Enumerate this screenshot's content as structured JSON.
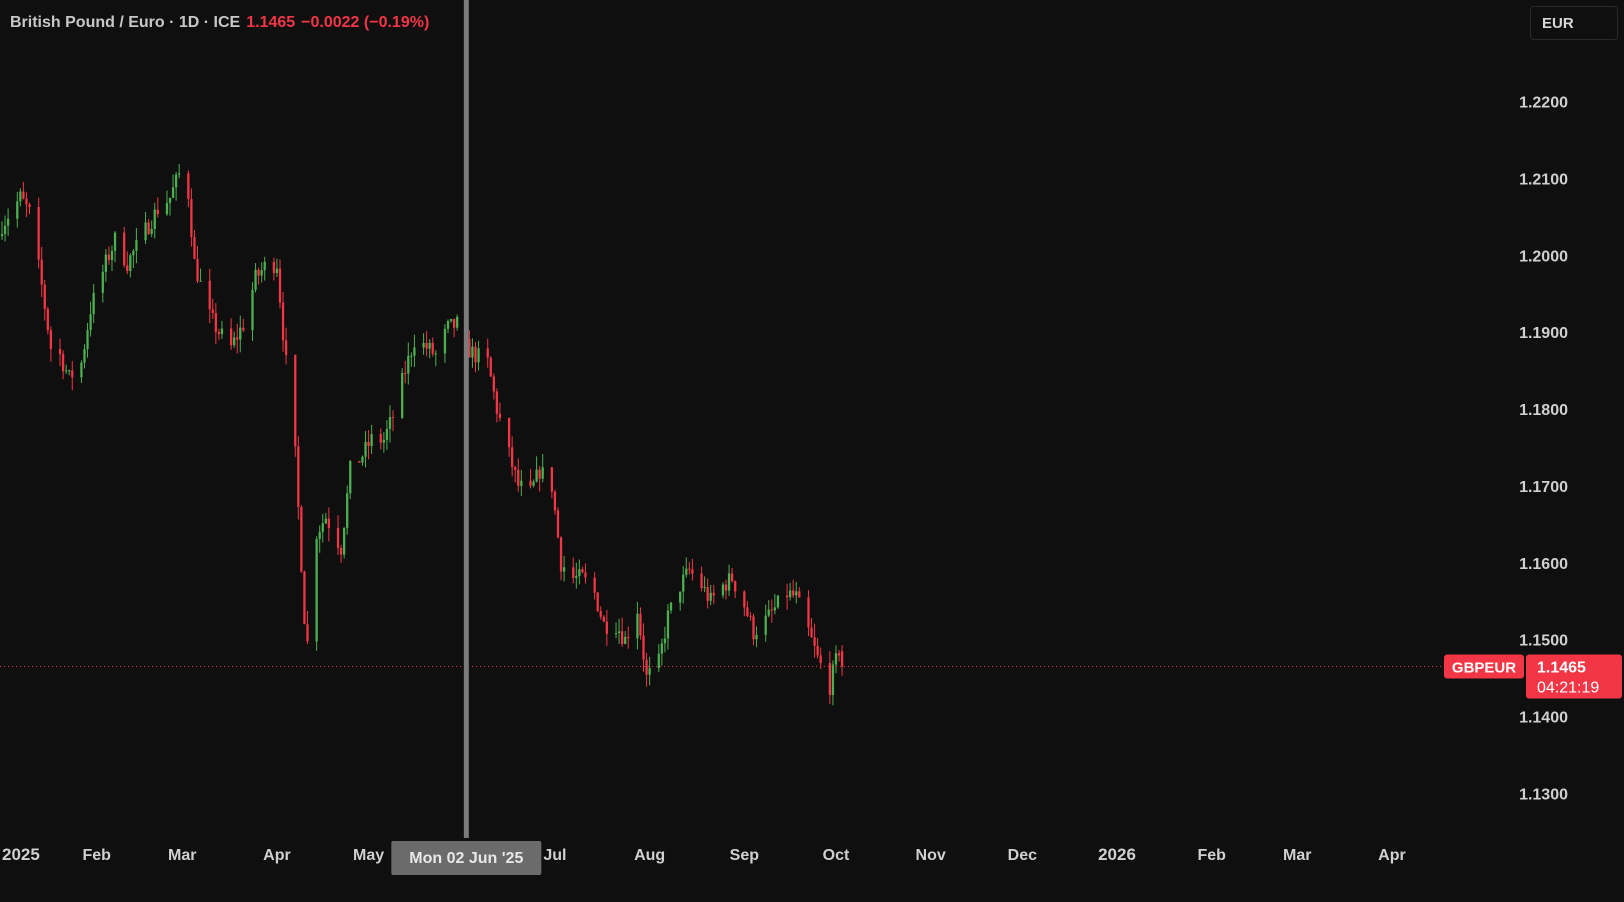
{
  "header": {
    "symbol_title": "British Pound / Euro · 1D · ICE",
    "last_price": "1.1465",
    "change": "−0.0022 (−0.19%)"
  },
  "currency_button": {
    "label": "EUR"
  },
  "price_tag": {
    "symbol": "GBPEUR",
    "price": "1.1465",
    "countdown": "04:21:19"
  },
  "crosshair": {
    "date_label": "Mon 02 Jun '25",
    "date": "2025-06-02"
  },
  "colors": {
    "background": "#0f0f0f",
    "up": "#4caf50",
    "down": "#f23645",
    "crosshair": "#7b7b7b",
    "axis_text": "#d0d0d0"
  },
  "chart_data": {
    "type": "candlestick",
    "symbol": "GBPEUR",
    "interval": "1D",
    "y_axis": {
      "ticks": [
        1.22,
        1.21,
        1.2,
        1.19,
        1.18,
        1.17,
        1.16,
        1.15,
        1.14,
        1.13
      ],
      "tick_labels": [
        "1.2200",
        "1.2100",
        "1.2000",
        "1.1900",
        "1.1800",
        "1.1700",
        "1.1600",
        "1.1500",
        "1.1400",
        "1.1300"
      ],
      "range": [
        1.1242,
        1.228
      ]
    },
    "x_axis": {
      "range": [
        "2025-01-01",
        "2026-04-20"
      ],
      "ticks": [
        {
          "label": "2025",
          "date": "2025-01-01",
          "major": true
        },
        {
          "label": "Feb",
          "date": "2025-02-01"
        },
        {
          "label": "Mar",
          "date": "2025-03-01"
        },
        {
          "label": "Apr",
          "date": "2025-04-01"
        },
        {
          "label": "May",
          "date": "2025-05-01"
        },
        {
          "label": "Jul",
          "date": "2025-07-01"
        },
        {
          "label": "Aug",
          "date": "2025-08-01"
        },
        {
          "label": "Sep",
          "date": "2025-09-01"
        },
        {
          "label": "Oct",
          "date": "2025-10-01"
        },
        {
          "label": "Nov",
          "date": "2025-11-01"
        },
        {
          "label": "Dec",
          "date": "2025-12-01"
        },
        {
          "label": "2026",
          "date": "2026-01-01",
          "major": true
        },
        {
          "label": "Feb",
          "date": "2026-02-01"
        },
        {
          "label": "Mar",
          "date": "2026-03-01"
        },
        {
          "label": "Apr",
          "date": "2026-04-01"
        }
      ]
    },
    "current_price_line": 1.1465,
    "series_close": [
      [
        "2025-01-01",
        1.204
      ],
      [
        "2025-01-07",
        1.2075
      ],
      [
        "2025-01-10",
        1.2055
      ],
      [
        "2025-01-14",
        1.196
      ],
      [
        "2025-01-17",
        1.188
      ],
      [
        "2025-01-20",
        1.187
      ],
      [
        "2025-01-23",
        1.184
      ],
      [
        "2025-01-27",
        1.186
      ],
      [
        "2025-01-30",
        1.193
      ],
      [
        "2025-02-04",
        1.199
      ],
      [
        "2025-02-07",
        1.202
      ],
      [
        "2025-02-11",
        1.199
      ],
      [
        "2025-02-14",
        1.201
      ],
      [
        "2025-02-18",
        1.204
      ],
      [
        "2025-02-21",
        1.206
      ],
      [
        "2025-02-25",
        1.2075
      ],
      [
        "2025-02-28",
        1.2105
      ],
      [
        "2025-03-03",
        1.208
      ],
      [
        "2025-03-05",
        1.199
      ],
      [
        "2025-03-10",
        1.192
      ],
      [
        "2025-03-13",
        1.19
      ],
      [
        "2025-03-17",
        1.188
      ],
      [
        "2025-03-21",
        1.191
      ],
      [
        "2025-03-25",
        1.197
      ],
      [
        "2025-03-28",
        1.1985
      ],
      [
        "2025-04-01",
        1.199
      ],
      [
        "2025-04-03",
        1.19
      ],
      [
        "2025-04-07",
        1.174
      ],
      [
        "2025-04-10",
        1.153
      ],
      [
        "2025-04-11",
        1.1495
      ],
      [
        "2025-04-14",
        1.164
      ],
      [
        "2025-04-17",
        1.166
      ],
      [
        "2025-04-22",
        1.162
      ],
      [
        "2025-04-25",
        1.172
      ],
      [
        "2025-04-29",
        1.174
      ],
      [
        "2025-05-02",
        1.176
      ],
      [
        "2025-05-06",
        1.176
      ],
      [
        "2025-05-09",
        1.179
      ],
      [
        "2025-05-13",
        1.185
      ],
      [
        "2025-05-16",
        1.189
      ],
      [
        "2025-05-20",
        1.188
      ],
      [
        "2025-05-23",
        1.187
      ],
      [
        "2025-05-27",
        1.1905
      ],
      [
        "2025-05-30",
        1.191
      ],
      [
        "2025-06-02",
        1.188
      ],
      [
        "2025-06-05",
        1.187
      ],
      [
        "2025-06-09",
        1.186
      ],
      [
        "2025-06-12",
        1.18
      ],
      [
        "2025-06-16",
        1.174
      ],
      [
        "2025-06-19",
        1.17
      ],
      [
        "2025-06-23",
        1.169
      ],
      [
        "2025-06-26",
        1.172
      ],
      [
        "2025-06-30",
        1.17
      ],
      [
        "2025-07-03",
        1.16
      ],
      [
        "2025-07-07",
        1.158
      ],
      [
        "2025-07-10",
        1.158
      ],
      [
        "2025-07-14",
        1.156
      ],
      [
        "2025-07-17",
        1.152
      ],
      [
        "2025-07-21",
        1.152
      ],
      [
        "2025-07-24",
        1.15
      ],
      [
        "2025-07-28",
        1.154
      ],
      [
        "2025-07-31",
        1.145
      ],
      [
        "2025-08-04",
        1.147
      ],
      [
        "2025-08-07",
        1.153
      ],
      [
        "2025-08-11",
        1.157
      ],
      [
        "2025-08-14",
        1.159
      ],
      [
        "2025-08-18",
        1.157
      ],
      [
        "2025-08-21",
        1.155
      ],
      [
        "2025-08-25",
        1.157
      ],
      [
        "2025-08-28",
        1.158
      ],
      [
        "2025-09-01",
        1.1545
      ],
      [
        "2025-09-04",
        1.151
      ],
      [
        "2025-09-08",
        1.1525
      ],
      [
        "2025-09-11",
        1.154
      ],
      [
        "2025-09-15",
        1.156
      ],
      [
        "2025-09-18",
        1.1555
      ],
      [
        "2025-09-22",
        1.151
      ],
      [
        "2025-09-25",
        1.1475
      ],
      [
        "2025-09-29",
        1.144
      ],
      [
        "2025-10-02",
        1.1487
      ],
      [
        "2025-10-03",
        1.1465
      ]
    ]
  }
}
